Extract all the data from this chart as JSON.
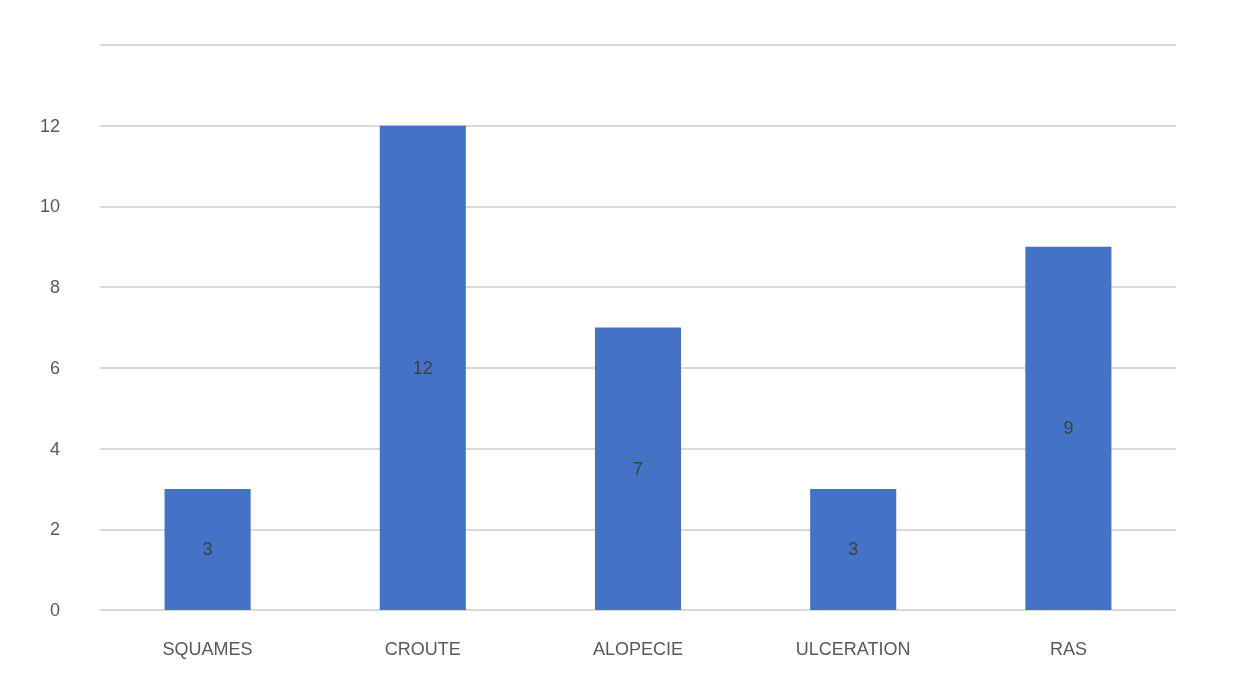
{
  "chart_data": {
    "type": "bar",
    "categories": [
      "SQUAMES",
      "CROUTE",
      "ALOPECIE",
      "ULCERATION",
      "RAS"
    ],
    "values": [
      3,
      12,
      7,
      3,
      9
    ],
    "color": "#4472c4",
    "ylim": [
      0,
      14
    ],
    "yticks": [
      0,
      2,
      4,
      6,
      8,
      10,
      12,
      {
        "value": 14,
        "label": null
      }
    ],
    "grid": "y",
    "data_labels": true
  }
}
